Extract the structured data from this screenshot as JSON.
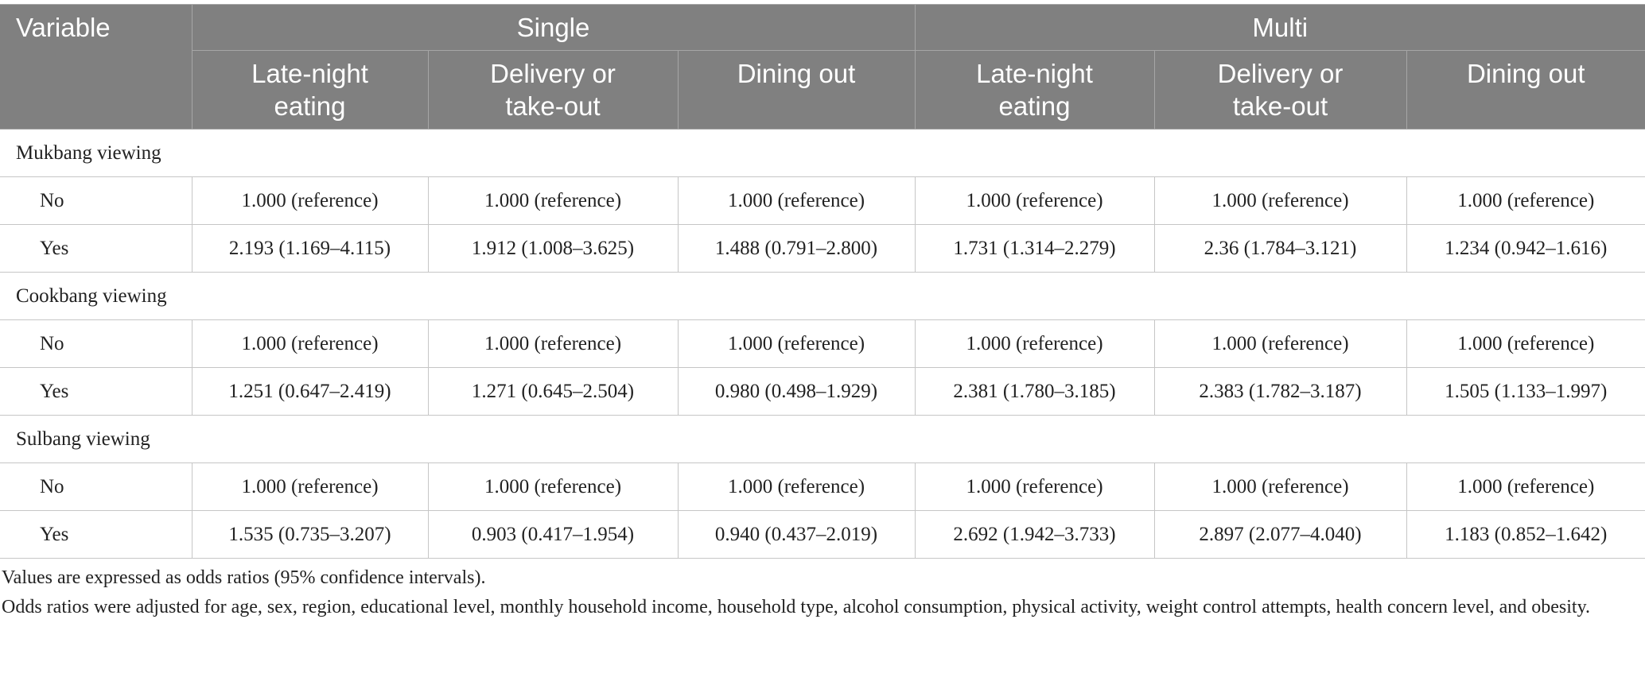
{
  "header": {
    "variable": "Variable",
    "groups": [
      "Single",
      "Multi"
    ],
    "columns": [
      "Late-night eating",
      "Delivery or take-out",
      "Dining out",
      "Late-night eating",
      "Delivery or take-out",
      "Dining out"
    ]
  },
  "sections": [
    {
      "title": "Mukbang viewing",
      "rows": [
        [
          "No",
          "1.000 (reference)",
          "1.000 (reference)",
          "1.000 (reference)",
          "1.000 (reference)",
          "1.000 (reference)",
          "1.000 (reference)"
        ],
        [
          "Yes",
          "2.193 (1.169–4.115)",
          "1.912 (1.008–3.625)",
          "1.488 (0.791–2.800)",
          "1.731 (1.314–2.279)",
          "2.36 (1.784–3.121)",
          "1.234 (0.942–1.616)"
        ]
      ]
    },
    {
      "title": "Cookbang viewing",
      "rows": [
        [
          "No",
          "1.000 (reference)",
          "1.000 (reference)",
          "1.000 (reference)",
          "1.000 (reference)",
          "1.000 (reference)",
          "1.000 (reference)"
        ],
        [
          "Yes",
          "1.251 (0.647–2.419)",
          "1.271 (0.645–2.504)",
          "0.980 (0.498–1.929)",
          "2.381 (1.780–3.185)",
          "2.383 (1.782–3.187)",
          "1.505 (1.133–1.997)"
        ]
      ]
    },
    {
      "title": "Sulbang viewing",
      "rows": [
        [
          "No",
          "1.000 (reference)",
          "1.000 (reference)",
          "1.000 (reference)",
          "1.000 (reference)",
          "1.000 (reference)",
          "1.000 (reference)"
        ],
        [
          "Yes",
          "1.535 (0.735–3.207)",
          "0.903 (0.417–1.954)",
          "0.940 (0.437–2.019)",
          "2.692 (1.942–3.733)",
          "2.897 (2.077–4.040)",
          "1.183 (0.852–1.642)"
        ]
      ]
    }
  ],
  "footnotes": [
    "Values are expressed as odds ratios (95% confidence intervals).",
    "Odds ratios were adjusted for age, sex, region, educational level, monthly household income, household type, alcohol consumption, physical activity, weight control attempts, health concern level, and obesity."
  ]
}
